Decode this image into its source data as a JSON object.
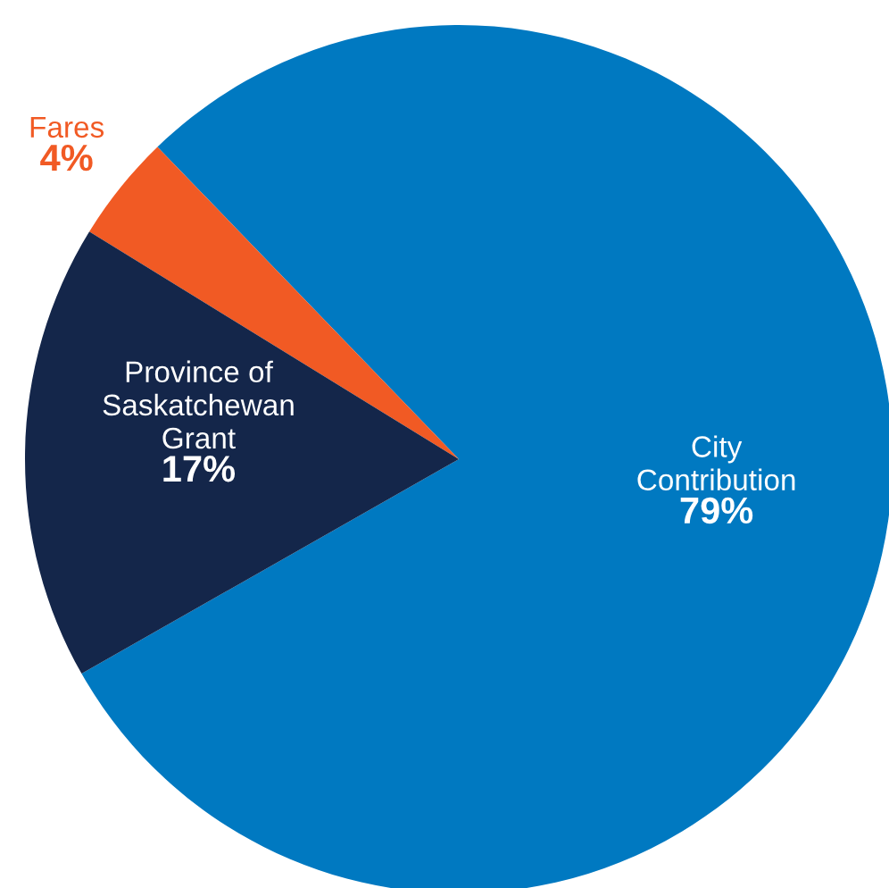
{
  "chart_data": {
    "type": "pie",
    "categories": [
      "City\nContribution",
      "Fares",
      "Province of\nSaskatchewan\nGrant"
    ],
    "values": [
      79,
      4,
      17
    ],
    "value_labels": [
      "79%",
      "4%",
      "17%"
    ],
    "colors": [
      "#0079c1",
      "#f15a24",
      "#14264a"
    ]
  }
}
